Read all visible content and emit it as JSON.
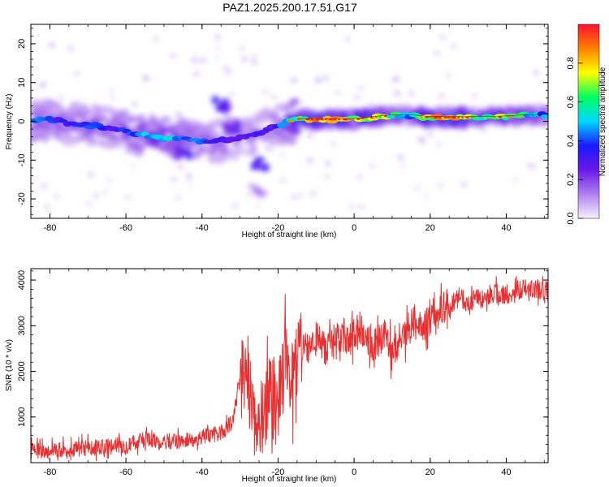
{
  "title": "PAZ1.2025.200.17.51.G17",
  "chart_data": [
    {
      "type": "heatmap",
      "xlabel": "Height of straight line (km)",
      "ylabel": "Frequency (Hz)",
      "xlim": [
        -85,
        51
      ],
      "ylim": [
        -25,
        25
      ],
      "xticks": [
        -80,
        -60,
        -40,
        -20,
        0,
        20,
        40
      ],
      "yticks": [
        -20,
        -10,
        0,
        10,
        20
      ],
      "xtick_labels": [
        "-80",
        "-60",
        "-40",
        "-20",
        "0",
        "20",
        "40"
      ],
      "ytick_labels": [
        "-20",
        "-10",
        "0",
        "10",
        "20"
      ],
      "colorbar": {
        "label": "Normalized spectral amplitude",
        "range": [
          0,
          1
        ],
        "ticks": [
          0.0,
          0.2,
          0.4,
          0.6,
          0.8
        ],
        "tick_labels": [
          "0.0",
          "0.2",
          "0.4",
          "0.6",
          "0.8"
        ],
        "colors": [
          "#f8f0ff",
          "#b080f0",
          "#6a18e8",
          "#1a1aff",
          "#00d8ff",
          "#00ff60",
          "#ffff00",
          "#ff8000",
          "#ff1030"
        ]
      },
      "ridge": {
        "x": [
          -85,
          -80,
          -75,
          -70,
          -65,
          -60,
          -55,
          -50,
          -45,
          -40,
          -35,
          -30,
          -25,
          -20,
          -15,
          -10,
          -5,
          0,
          5,
          10,
          15,
          20,
          25,
          30,
          35,
          40,
          45,
          51
        ],
        "y": [
          0.0,
          0.5,
          -0.5,
          -1.0,
          -1.5,
          -2.5,
          -3.5,
          -4.5,
          -4.5,
          -5.5,
          -5.0,
          -4.0,
          -3.0,
          -1.0,
          0.5,
          0.5,
          0.5,
          0.5,
          1.0,
          1.5,
          1.5,
          1.0,
          1.0,
          1.0,
          1.0,
          1.2,
          1.5,
          1.6
        ],
        "amplitude": [
          0.45,
          0.4,
          0.35,
          0.4,
          0.35,
          0.4,
          0.5,
          0.55,
          0.45,
          0.4,
          0.35,
          0.3,
          0.3,
          0.35,
          0.7,
          0.9,
          0.85,
          0.75,
          0.85,
          0.6,
          0.5,
          0.8,
          0.85,
          0.8,
          0.6,
          0.7,
          0.55,
          0.45
        ]
      },
      "secondary_features": [
        {
          "x": -35,
          "y": 4.0,
          "amplitude": 0.35
        },
        {
          "x": -25,
          "y": -11.0,
          "amplitude": 0.4
        },
        {
          "x": -45,
          "y": -8.0,
          "amplitude": 0.35
        },
        {
          "x": -32,
          "y": -1.0,
          "amplitude": 0.3
        },
        {
          "x": -25,
          "y": -18.0,
          "amplitude": 0.15
        }
      ]
    },
    {
      "type": "line",
      "xlabel": "Height of straight line (km)",
      "ylabel": "SNR (10 * v/v)",
      "xlim": [
        -85,
        51
      ],
      "ylim": [
        0,
        4250
      ],
      "xticks": [
        -80,
        -60,
        -40,
        -20,
        0,
        20,
        40
      ],
      "yticks": [
        1000,
        2000,
        3000,
        4000
      ],
      "xtick_labels": [
        "-80",
        "-60",
        "-40",
        "-20",
        "0",
        "20",
        "40"
      ],
      "ytick_labels": [
        "1000",
        "2000",
        "3000",
        "4000"
      ],
      "line_color": "#e83030",
      "series": [
        {
          "x": [
            -85,
            -80,
            -75,
            -70,
            -65,
            -60,
            -55,
            -50,
            -45,
            -40,
            -35,
            -32,
            -30,
            -28,
            -26,
            -24,
            -22,
            -20,
            -18,
            -16,
            -14,
            -12,
            -10,
            -8,
            -6,
            -4,
            -2,
            0,
            2,
            4,
            6,
            8,
            10,
            12,
            14,
            16,
            18,
            20,
            22,
            24,
            26,
            28,
            30,
            32,
            34,
            36,
            38,
            40,
            42,
            44,
            46,
            48,
            51
          ],
          "y": [
            250,
            280,
            300,
            320,
            350,
            400,
            500,
            450,
            480,
            550,
            650,
            900,
            1800,
            2000,
            900,
            1000,
            1500,
            1200,
            2200,
            1800,
            2400,
            2600,
            2700,
            2500,
            2600,
            2700,
            2800,
            2800,
            2900,
            2700,
            2600,
            2900,
            2300,
            2700,
            2900,
            3100,
            2900,
            3200,
            3300,
            3400,
            3500,
            3600,
            3500,
            3600,
            3600,
            3700,
            3700,
            3700,
            3750,
            3800,
            3800,
            3800,
            3750
          ]
        }
      ]
    }
  ]
}
